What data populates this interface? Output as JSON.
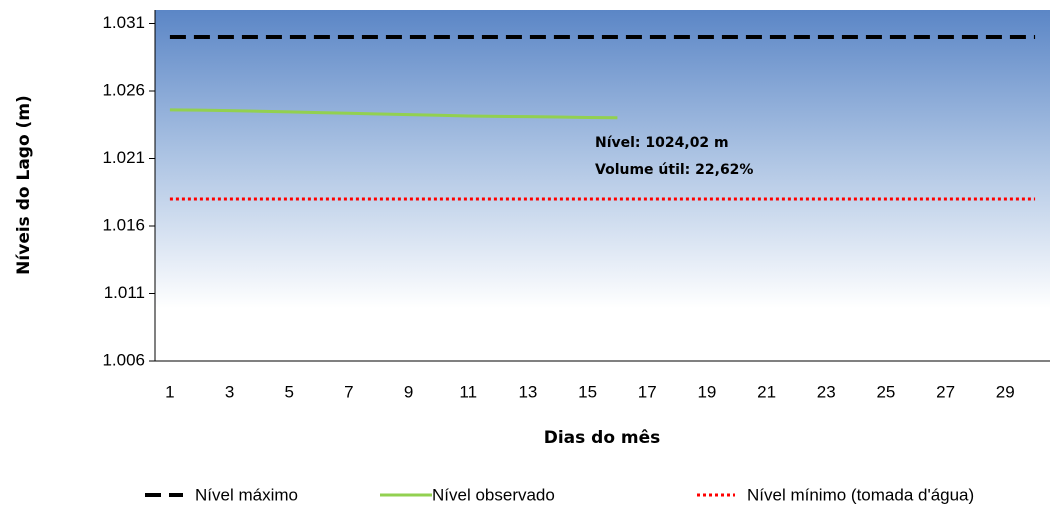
{
  "chart_data": {
    "type": "line",
    "x_label": "Dias do mês",
    "y_label": "Níveis do Lago (m)",
    "categories": [
      1,
      null,
      3,
      null,
      5,
      null,
      7,
      null,
      9,
      null,
      11,
      null,
      13,
      null,
      15,
      null,
      17,
      null,
      19,
      null,
      21,
      null,
      23,
      null,
      25,
      null,
      27,
      null,
      29,
      null
    ],
    "series": [
      {
        "name": "Nível máximo",
        "color": "#000000",
        "style": "dashed",
        "values": [
          1030,
          1030,
          1030,
          1030,
          1030,
          1030,
          1030,
          1030,
          1030,
          1030,
          1030,
          1030,
          1030,
          1030,
          1030,
          1030,
          1030,
          1030,
          1030,
          1030,
          1030,
          1030,
          1030,
          1030,
          1030,
          1030,
          1030,
          1030,
          1030,
          1030
        ]
      },
      {
        "name": "Nível observado",
        "color": "#92d050",
        "style": "solid",
        "values": [
          1024.6,
          1024.58,
          1024.55,
          1024.5,
          1024.45,
          1024.4,
          1024.35,
          1024.3,
          1024.25,
          1024.2,
          1024.15,
          1024.12,
          1024.1,
          1024.07,
          1024.04,
          1024.02,
          null,
          null,
          null,
          null,
          null,
          null,
          null,
          null,
          null,
          null,
          null,
          null,
          null,
          null
        ]
      },
      {
        "name": "Nível mínimo (tomada d'água)",
        "color": "#ff0000",
        "style": "dotted",
        "values": [
          1018,
          1018,
          1018,
          1018,
          1018,
          1018,
          1018,
          1018,
          1018,
          1018,
          1018,
          1018,
          1018,
          1018,
          1018,
          1018,
          1018,
          1018,
          1018,
          1018,
          1018,
          1018,
          1018,
          1018,
          1018,
          1018,
          1018,
          1018,
          1018,
          1018
        ]
      }
    ],
    "annotations": [
      "Nível: 1024,02 m",
      "Volume útil: 22,62%"
    ],
    "ylim": [
      1006,
      1032
    ],
    "yticks": [
      {
        "value": 1006,
        "label": "1.006"
      },
      {
        "value": 1011,
        "label": "1.011"
      },
      {
        "value": 1016,
        "label": "1.016"
      },
      {
        "value": 1021,
        "label": "1.021"
      },
      {
        "value": 1026,
        "label": "1.026"
      },
      {
        "value": 1031,
        "label": "1.031"
      }
    ],
    "legend": "bottom"
  }
}
